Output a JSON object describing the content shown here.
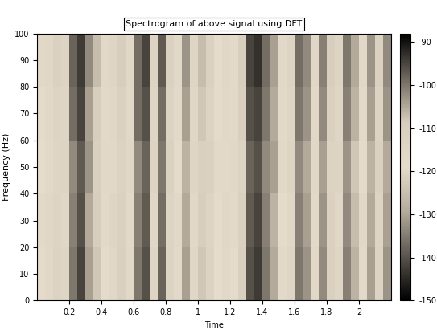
{
  "chart_data": {
    "type": "heatmap",
    "title": "Spectrogram of above signal using DFT",
    "x_label": "Time",
    "y_label": "Frequency (Hz)",
    "xlim": [
      0,
      2.2
    ],
    "xticks": [
      0.2,
      0.4,
      0.6,
      0.8,
      1,
      1.2,
      1.4,
      1.6,
      1.8,
      2
    ],
    "ylim": [
      0,
      100
    ],
    "yticks": [
      0,
      10,
      20,
      30,
      40,
      50,
      60,
      70,
      80,
      90,
      100
    ],
    "x_edges": [
      0,
      0.05,
      0.1,
      0.15,
      0.2,
      0.25,
      0.3,
      0.35,
      0.4,
      0.45,
      0.5,
      0.55,
      0.6,
      0.65,
      0.7,
      0.75,
      0.8,
      0.85,
      0.9,
      0.95,
      1.0,
      1.05,
      1.1,
      1.15,
      1.2,
      1.25,
      1.3,
      1.35,
      1.4,
      1.45,
      1.5,
      1.55,
      1.6,
      1.65,
      1.7,
      1.75,
      1.8,
      1.85,
      1.9,
      1.95,
      2.0,
      2.05,
      2.1,
      2.15,
      2.2
    ],
    "y_edges": [
      0,
      20,
      40,
      60,
      80,
      100
    ],
    "cells": [
      [
        -118,
        -116,
        -112,
        -114,
        -100,
        -95,
        -104,
        -108,
        -118,
        -115,
        -110,
        -116,
        -100,
        -96,
        -114,
        -98,
        -112,
        -117,
        -104,
        -115,
        -108,
        -112,
        -119,
        -116,
        -118,
        -110,
        -96,
        -94,
        -100,
        -105,
        -117,
        -114,
        -100,
        -103,
        -116,
        -102,
        -110,
        -114,
        -101,
        -106,
        -117,
        -104,
        -112,
        -103
      ],
      [
        -117,
        -115,
        -113,
        -115,
        -101,
        -96,
        -105,
        -109,
        -117,
        -114,
        -111,
        -117,
        -101,
        -97,
        -115,
        -99,
        -113,
        -116,
        -105,
        -116,
        -109,
        -113,
        -118,
        -115,
        -117,
        -111,
        -97,
        -95,
        -101,
        -106,
        -118,
        -115,
        -101,
        -104,
        -117,
        -103,
        -111,
        -115,
        -102,
        -107,
        -116,
        -105,
        -113,
        -104
      ],
      [
        -119,
        -117,
        -114,
        -113,
        -102,
        -97,
        -103,
        -110,
        -116,
        -116,
        -112,
        -115,
        -102,
        -98,
        -113,
        -100,
        -111,
        -118,
        -106,
        -114,
        -110,
        -111,
        -117,
        -117,
        -116,
        -112,
        -98,
        -96,
        -102,
        -104,
        -116,
        -113,
        -102,
        -105,
        -115,
        -104,
        -112,
        -113,
        -103,
        -108,
        -118,
        -106,
        -111,
        -105
      ],
      [
        -118,
        -116,
        -113,
        -114,
        -99,
        -95,
        -104,
        -109,
        -117,
        -115,
        -111,
        -116,
        -99,
        -96,
        -114,
        -99,
        -112,
        -117,
        -104,
        -115,
        -108,
        -112,
        -118,
        -116,
        -117,
        -110,
        -96,
        -95,
        -100,
        -105,
        -117,
        -114,
        -100,
        -103,
        -116,
        -102,
        -110,
        -114,
        -101,
        -106,
        -117,
        -104,
        -112,
        -103
      ],
      [
        -116,
        -115,
        -111,
        -113,
        -98,
        -94,
        -102,
        -107,
        -116,
        -114,
        -109,
        -115,
        -99,
        -95,
        -113,
        -97,
        -111,
        -116,
        -103,
        -114,
        -107,
        -111,
        -118,
        -115,
        -117,
        -109,
        -95,
        -93,
        -99,
        -104,
        -116,
        -113,
        -99,
        -102,
        -115,
        -101,
        -109,
        -113,
        -100,
        -105,
        -116,
        -103,
        -111,
        -102
      ]
    ],
    "colorbar_range": [
      -150,
      -88
    ],
    "colorbar_ticks": [
      -90,
      -100,
      -110,
      -120,
      -130,
      -140,
      -150
    ]
  }
}
